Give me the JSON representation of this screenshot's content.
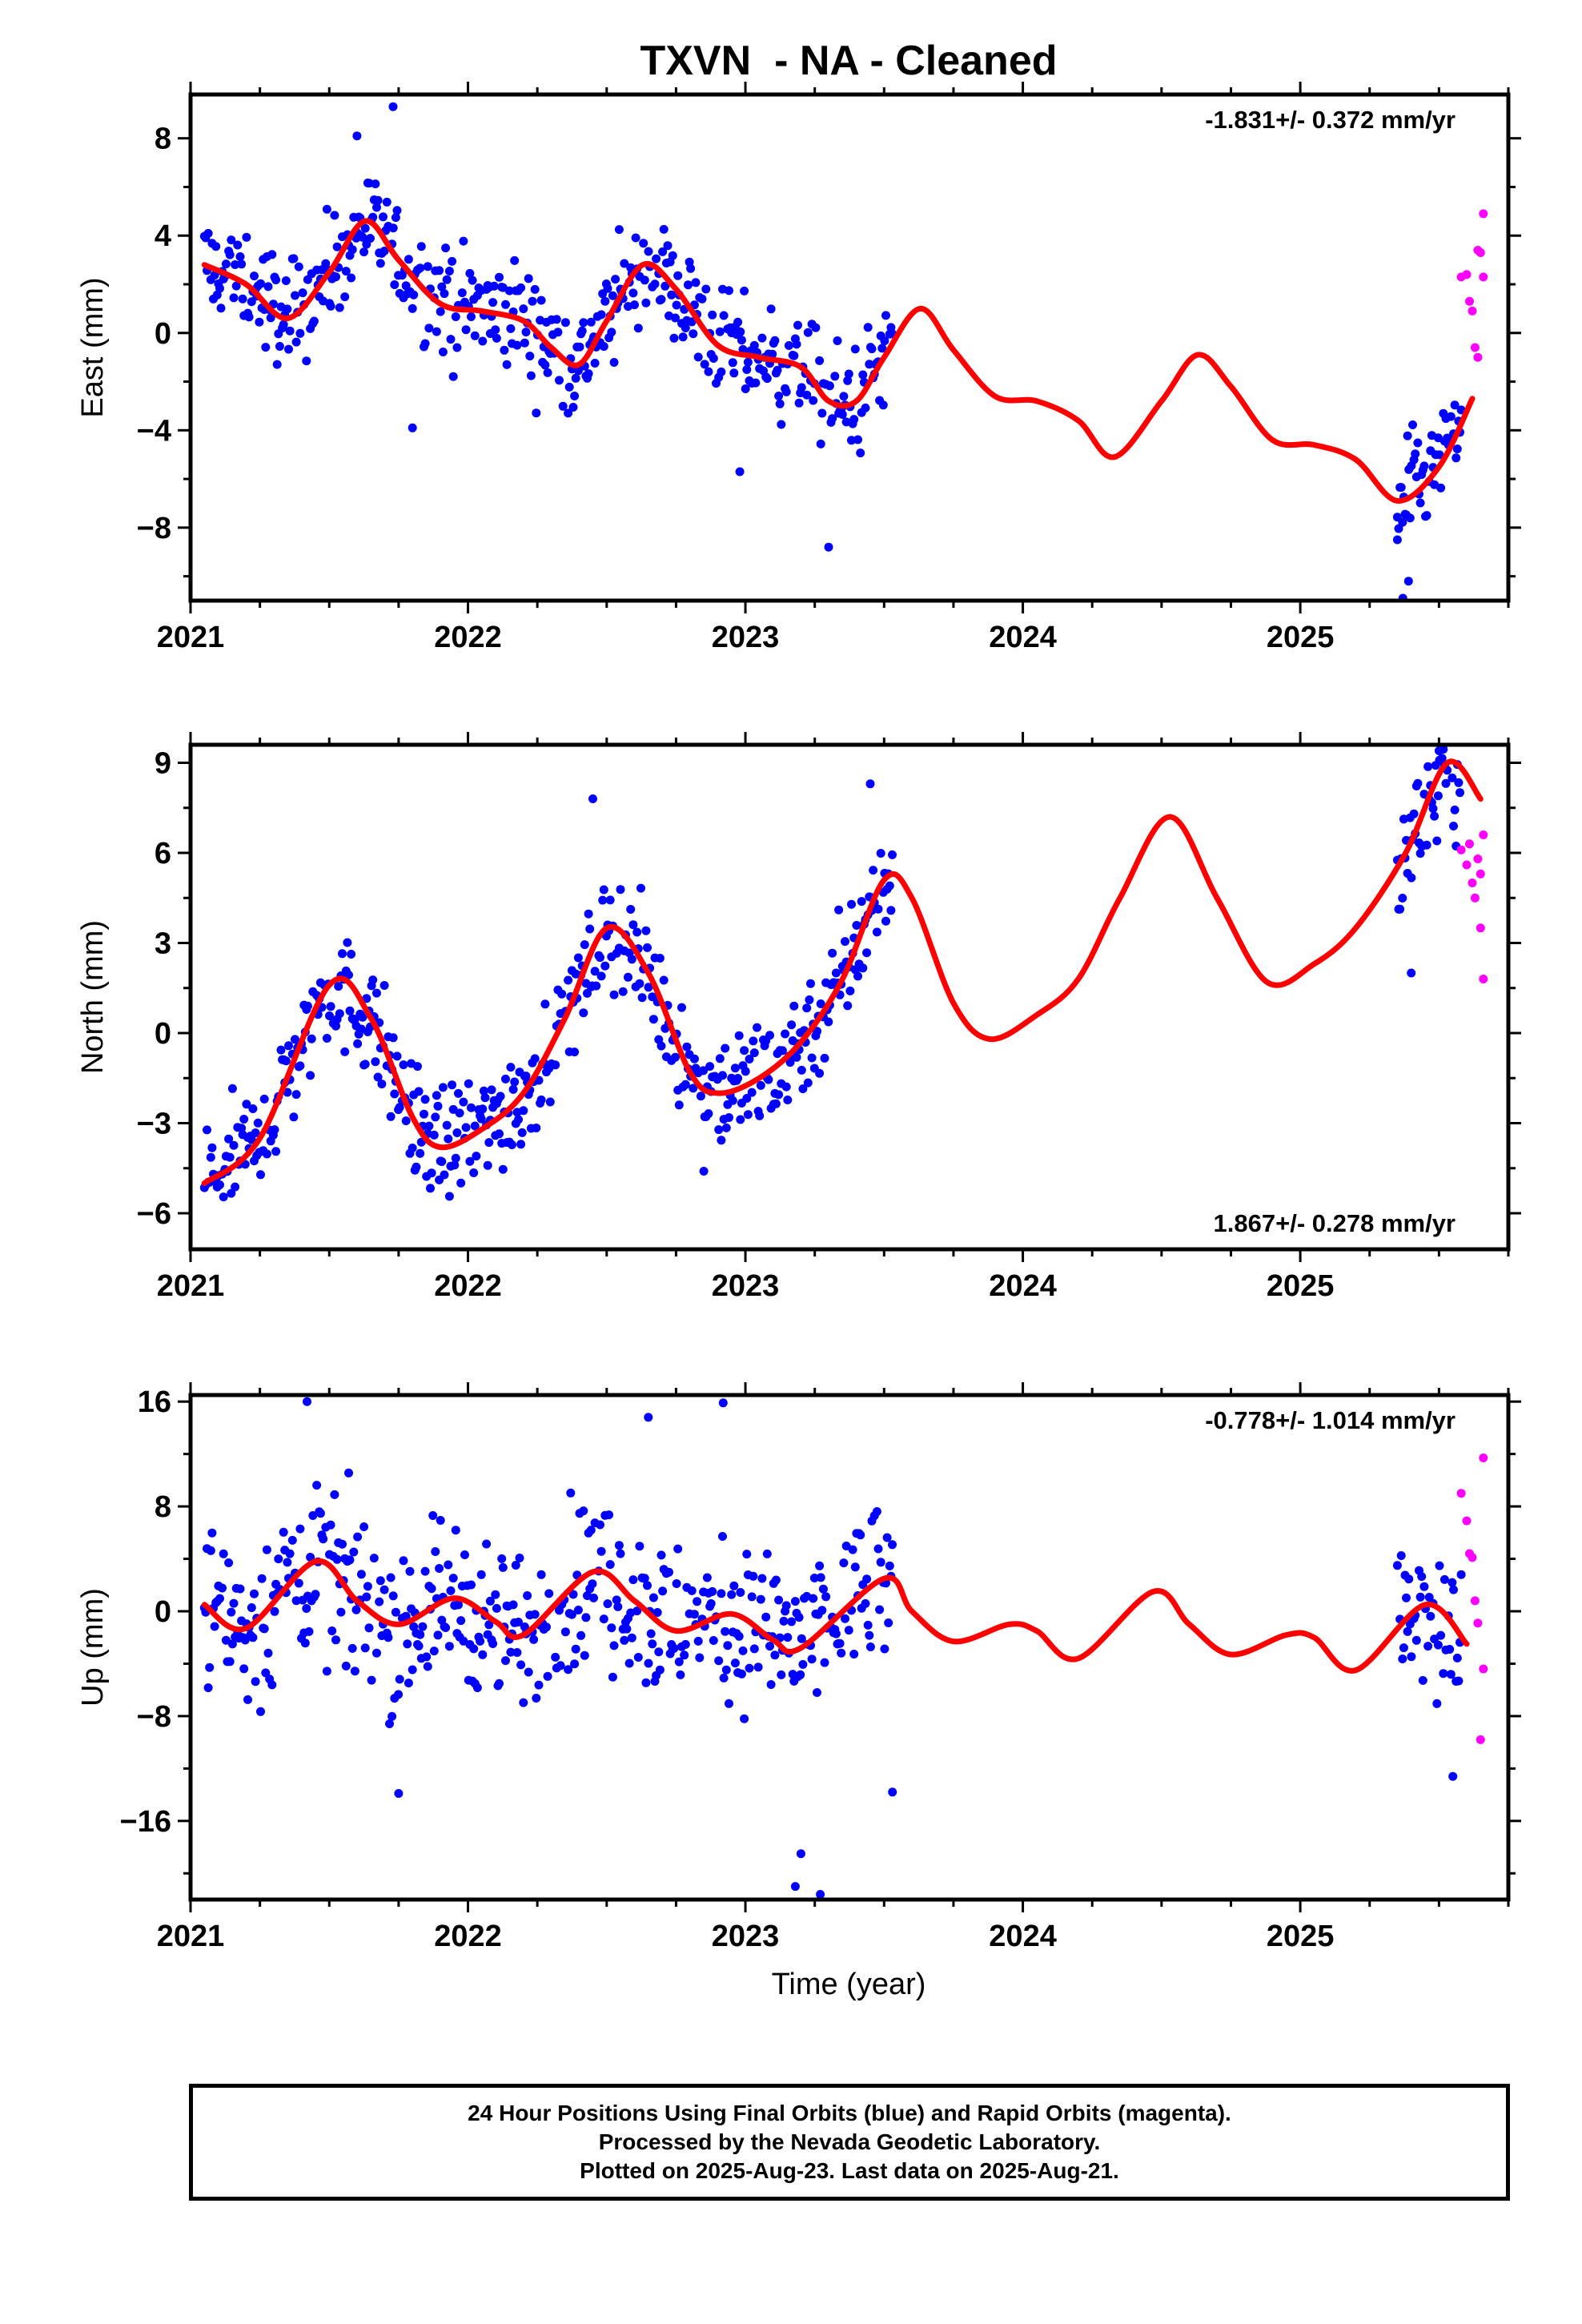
{
  "page_title": "TXVN  - NA - Cleaned",
  "footer": {
    "line1": "24 Hour Positions Using Final Orbits (blue) and Rapid Orbits (magenta).",
    "line2": "Processed by the Nevada Geodetic Laboratory.",
    "line3": "Plotted on 2025-Aug-23. Last data on 2025-Aug-21."
  },
  "colors": {
    "final_orbits": "#0000ff",
    "rapid_orbits": "#ff00ff",
    "model_fit": "#ff0000",
    "frame": "#000000"
  },
  "chart_data": [
    {
      "type": "scatter",
      "ylabel": "East (mm)",
      "annotation": "-1.831+/- 0.372 mm/yr",
      "annotation_position": "top-right",
      "xlim": [
        2021.0,
        2025.75
      ],
      "ylim": [
        -11,
        9.8
      ],
      "xticks": [
        2021,
        2022,
        2023,
        2024,
        2025
      ],
      "xtick_labels": [
        "2021",
        "2022",
        "2023",
        "2024",
        "2025"
      ],
      "yticks": [
        -8,
        -4,
        0,
        4,
        8
      ],
      "ytick_labels": [
        "−8",
        "−4",
        "0",
        "4",
        "8"
      ],
      "rate_mm_per_yr": -1.831,
      "series": [
        {
          "style": "dots",
          "color": "#0000ff",
          "segments": [
            [
              2021.05,
              2023.53
            ],
            [
              2025.35,
              2025.58
            ]
          ],
          "noise": 1.6,
          "outliers": [
            [
              2021.6,
              8.1
            ],
            [
              2021.73,
              9.3
            ],
            [
              2021.8,
              -3.9
            ],
            [
              2022.98,
              -5.7
            ],
            [
              2023.3,
              -8.8
            ],
            [
              2025.37,
              -10.9
            ],
            [
              2025.39,
              -10.2
            ],
            [
              2025.35,
              -8.5
            ]
          ]
        },
        {
          "style": "dots",
          "color": "#ff00ff",
          "x": [
            2025.58,
            2025.6,
            2025.61,
            2025.62,
            2025.63,
            2025.64,
            2025.64,
            2025.65,
            2025.66,
            2025.66
          ],
          "y": [
            2.3,
            2.4,
            1.3,
            0.9,
            -0.6,
            -1.0,
            3.4,
            3.3,
            4.9,
            2.3
          ]
        },
        {
          "style": "line",
          "color": "#ff0000",
          "x": [
            2021.05,
            2021.2,
            2021.35,
            2021.5,
            2021.63,
            2021.75,
            2021.9,
            2022.05,
            2022.2,
            2022.3,
            2022.4,
            2022.5,
            2022.63,
            2022.75,
            2022.9,
            2023.05,
            2023.2,
            2023.3,
            2023.4,
            2023.5,
            2023.63,
            2023.75,
            2023.9,
            2024.05,
            2024.2,
            2024.33,
            2024.5,
            2024.63,
            2024.75,
            2024.9,
            2025.05,
            2025.2,
            2025.35,
            2025.5,
            2025.62
          ],
          "y": [
            2.8,
            2.0,
            0.6,
            2.5,
            4.6,
            3.0,
            1.2,
            0.9,
            0.5,
            -0.6,
            -1.3,
            0.5,
            2.8,
            1.8,
            -0.5,
            -1.0,
            -1.4,
            -2.8,
            -2.8,
            -1.0,
            1.0,
            -0.7,
            -2.6,
            -2.8,
            -3.6,
            -5.1,
            -2.8,
            -0.9,
            -2.2,
            -4.4,
            -4.6,
            -5.2,
            -6.9,
            -5.5,
            -2.7
          ]
        }
      ]
    },
    {
      "type": "scatter",
      "ylabel": "North (mm)",
      "annotation": "1.867+/- 0.278 mm/yr",
      "annotation_position": "bottom-right",
      "xlim": [
        2021.0,
        2025.75
      ],
      "ylim": [
        -7.2,
        9.6
      ],
      "xticks": [
        2021,
        2022,
        2023,
        2024,
        2025
      ],
      "xtick_labels": [
        "2021",
        "2022",
        "2023",
        "2024",
        "2025"
      ],
      "yticks": [
        -6,
        -3,
        0,
        3,
        6,
        9
      ],
      "ytick_labels": [
        "−6",
        "−3",
        "0",
        "3",
        "6",
        "9"
      ],
      "rate_mm_per_yr": 1.867,
      "series": [
        {
          "style": "dots",
          "color": "#0000ff",
          "segments": [
            [
              2021.05,
              2023.53
            ],
            [
              2025.35,
              2025.58
            ]
          ],
          "noise": 1.4,
          "outliers": [
            [
              2022.45,
              7.8
            ],
            [
              2023.45,
              8.3
            ],
            [
              2022.85,
              -4.6
            ],
            [
              2025.5,
              9.4
            ],
            [
              2025.4,
              2.0
            ]
          ]
        },
        {
          "style": "dots",
          "color": "#ff00ff",
          "x": [
            2025.58,
            2025.6,
            2025.61,
            2025.62,
            2025.63,
            2025.64,
            2025.65,
            2025.65,
            2025.66,
            2025.66
          ],
          "y": [
            6.1,
            5.6,
            6.3,
            5.0,
            4.5,
            5.8,
            3.5,
            5.3,
            1.8,
            6.6
          ]
        },
        {
          "style": "line",
          "color": "#ff0000",
          "x": [
            2021.05,
            2021.25,
            2021.5,
            2021.65,
            2021.8,
            2021.9,
            2022.05,
            2022.2,
            2022.35,
            2022.5,
            2022.65,
            2022.8,
            2022.9,
            2023.05,
            2023.2,
            2023.35,
            2023.5,
            2023.6,
            2023.75,
            2023.88,
            2024.05,
            2024.2,
            2024.35,
            2024.53,
            2024.7,
            2024.88,
            2025.05,
            2025.2,
            2025.38,
            2025.53,
            2025.65
          ],
          "y": [
            -5.0,
            -3.5,
            1.6,
            0.5,
            -2.8,
            -3.8,
            -3.2,
            -2.0,
            0.5,
            3.5,
            2.0,
            -1.3,
            -2.0,
            -1.5,
            -0.3,
            1.8,
            5.1,
            4.5,
            1.0,
            -0.2,
            0.6,
            1.8,
            4.5,
            7.2,
            4.5,
            1.7,
            2.3,
            3.5,
            6.0,
            9.0,
            7.8
          ]
        }
      ]
    },
    {
      "type": "scatter",
      "ylabel": "Up (mm)",
      "xlabel": "Time (year)",
      "annotation": "-0.778+/- 1.014 mm/yr",
      "annotation_position": "top-right",
      "xlim": [
        2021.0,
        2025.75
      ],
      "ylim": [
        -22,
        16.5
      ],
      "xticks": [
        2021,
        2022,
        2023,
        2024,
        2025
      ],
      "xtick_labels": [
        "2021",
        "2022",
        "2023",
        "2024",
        "2025"
      ],
      "yticks": [
        -16,
        -8,
        0,
        8,
        16
      ],
      "ytick_labels": [
        "−16",
        "−8",
        "0",
        "8",
        "16"
      ],
      "rate_mm_per_yr": -0.778,
      "series": [
        {
          "style": "dots",
          "color": "#0000ff",
          "segments": [
            [
              2021.05,
              2023.53
            ],
            [
              2025.35,
              2025.58
            ]
          ],
          "noise": 4.5,
          "outliers": [
            [
              2021.42,
              16.0
            ],
            [
              2022.92,
              15.9
            ],
            [
              2022.65,
              14.8
            ],
            [
              2023.2,
              -18.5
            ],
            [
              2023.18,
              -21.0
            ],
            [
              2023.27,
              -21.6
            ],
            [
              2021.75,
              -13.9
            ],
            [
              2023.53,
              -13.8
            ],
            [
              2025.55,
              -12.6
            ]
          ]
        },
        {
          "style": "dots",
          "color": "#ff00ff",
          "x": [
            2025.58,
            2025.6,
            2025.61,
            2025.62,
            2025.63,
            2025.64,
            2025.65,
            2025.66,
            2025.66
          ],
          "y": [
            9.0,
            6.9,
            4.4,
            4.1,
            0.8,
            -0.9,
            -9.8,
            11.7,
            -4.4
          ]
        },
        {
          "style": "line",
          "color": "#ff0000",
          "x": [
            2021.05,
            2021.2,
            2021.45,
            2021.6,
            2021.75,
            2021.95,
            2022.1,
            2022.2,
            2022.45,
            2022.6,
            2022.75,
            2022.95,
            2023.1,
            2023.2,
            2023.5,
            2023.6,
            2023.75,
            2023.95,
            2024.05,
            2024.2,
            2024.47,
            2024.6,
            2024.75,
            2024.95,
            2025.05,
            2025.2,
            2025.45,
            2025.6
          ],
          "y": [
            0.5,
            -1.3,
            3.8,
            0.8,
            -1.0,
            1.0,
            -0.8,
            -1.8,
            3.0,
            0.8,
            -1.5,
            -0.2,
            -2.2,
            -2.8,
            2.5,
            0.0,
            -2.3,
            -1.0,
            -1.5,
            -3.6,
            1.5,
            -1.0,
            -3.3,
            -1.8,
            -2.0,
            -4.5,
            0.5,
            -2.5
          ]
        }
      ]
    }
  ]
}
